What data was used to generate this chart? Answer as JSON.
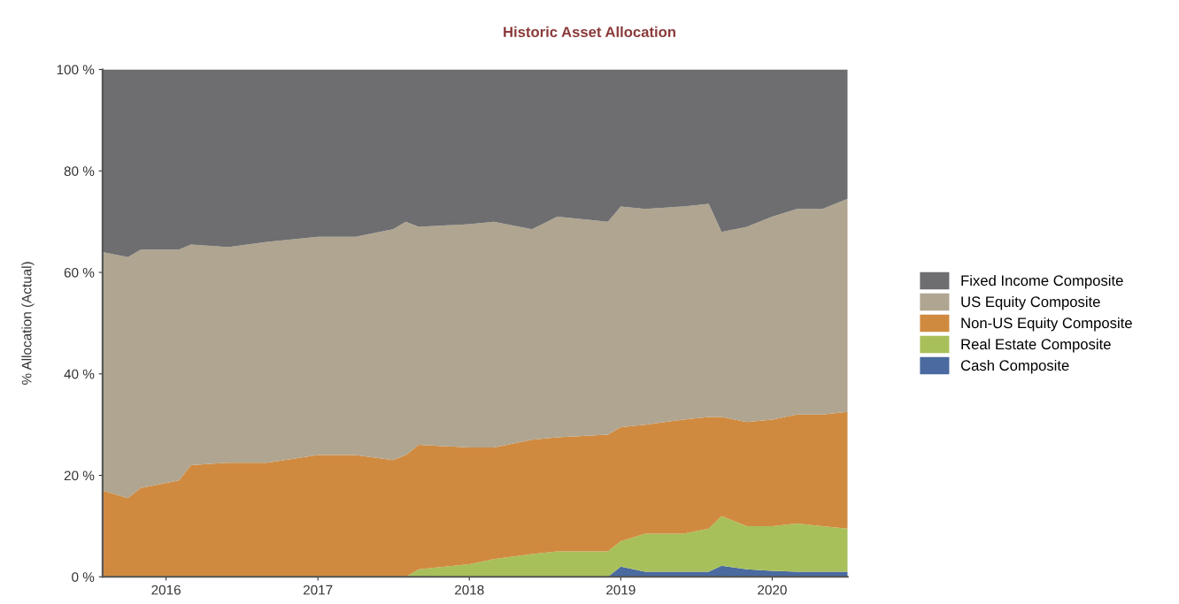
{
  "chart_data": {
    "type": "area",
    "stacked": true,
    "title": "Historic Asset Allocation",
    "ylabel": "% Allocation (Actual)",
    "x": [
      "2015-08",
      "2015-10",
      "2015-11",
      "2016-02",
      "2016-03",
      "2016-06",
      "2016-09",
      "2017-01",
      "2017-04",
      "2017-07",
      "2017-08",
      "2017-09",
      "2018-01",
      "2018-03",
      "2018-06",
      "2018-08",
      "2018-12",
      "2019-01",
      "2019-03",
      "2019-06",
      "2019-08",
      "2019-09",
      "2019-11",
      "2020-01",
      "2020-03",
      "2020-05",
      "2020-07"
    ],
    "series": [
      {
        "name": "Cash Composite",
        "color": "#4a6aa0",
        "values": [
          0,
          0,
          0,
          0,
          0,
          0,
          0,
          0,
          0,
          0,
          0,
          0,
          0,
          0,
          0,
          0,
          0,
          2,
          1,
          1,
          1,
          2.2,
          1.5,
          1.2,
          1,
          1,
          1
        ]
      },
      {
        "name": "Real Estate Composite",
        "color": "#a8c05a",
        "values": [
          0,
          0,
          0,
          0,
          0,
          0,
          0,
          0,
          0,
          0,
          0,
          1.5,
          2.5,
          3.5,
          4.5,
          5,
          5,
          5,
          7.5,
          7.5,
          8.5,
          9.8,
          8.5,
          8.8,
          9.5,
          9,
          8.5
        ]
      },
      {
        "name": "Non-US Equity Composite",
        "color": "#d08a40",
        "values": [
          17,
          15.5,
          17.5,
          19,
          22,
          22.5,
          22.5,
          24,
          24,
          23,
          24,
          24.5,
          23,
          22,
          22.5,
          22.5,
          23,
          22.5,
          21.5,
          22.5,
          22,
          19.5,
          20.5,
          21,
          21.5,
          22,
          23
        ]
      },
      {
        "name": "US Equity Composite",
        "color": "#b0a590",
        "values": [
          47,
          47.5,
          47,
          45.5,
          43.5,
          42.5,
          43.5,
          43,
          43,
          45.5,
          46,
          43,
          44,
          44.5,
          41.5,
          43.5,
          42,
          43.5,
          42.5,
          42,
          42,
          36.5,
          38.5,
          40,
          40.5,
          40.5,
          42
        ]
      },
      {
        "name": "Fixed Income Composite",
        "color": "#6e6e70",
        "values": [
          36,
          37,
          35.5,
          35.5,
          34.5,
          35,
          34,
          33,
          33,
          31.5,
          30,
          31,
          30.5,
          30,
          31.5,
          29,
          30,
          27,
          27.5,
          27,
          26.5,
          32,
          31,
          29,
          27.5,
          27.5,
          25.5
        ]
      }
    ],
    "xlim": [
      "2015-08",
      "2020-07"
    ],
    "xticks": [
      "2016",
      "2017",
      "2018",
      "2019",
      "2020"
    ],
    "ylim": [
      0,
      100
    ],
    "yticks": [
      {
        "value": 0,
        "label": "0 %"
      },
      {
        "value": 20,
        "label": "20 %"
      },
      {
        "value": 40,
        "label": "40 %"
      },
      {
        "value": 60,
        "label": "60 %"
      },
      {
        "value": 80,
        "label": "80 %"
      },
      {
        "value": 100,
        "label": "100 %"
      }
    ],
    "grid": false,
    "legend": "right"
  }
}
